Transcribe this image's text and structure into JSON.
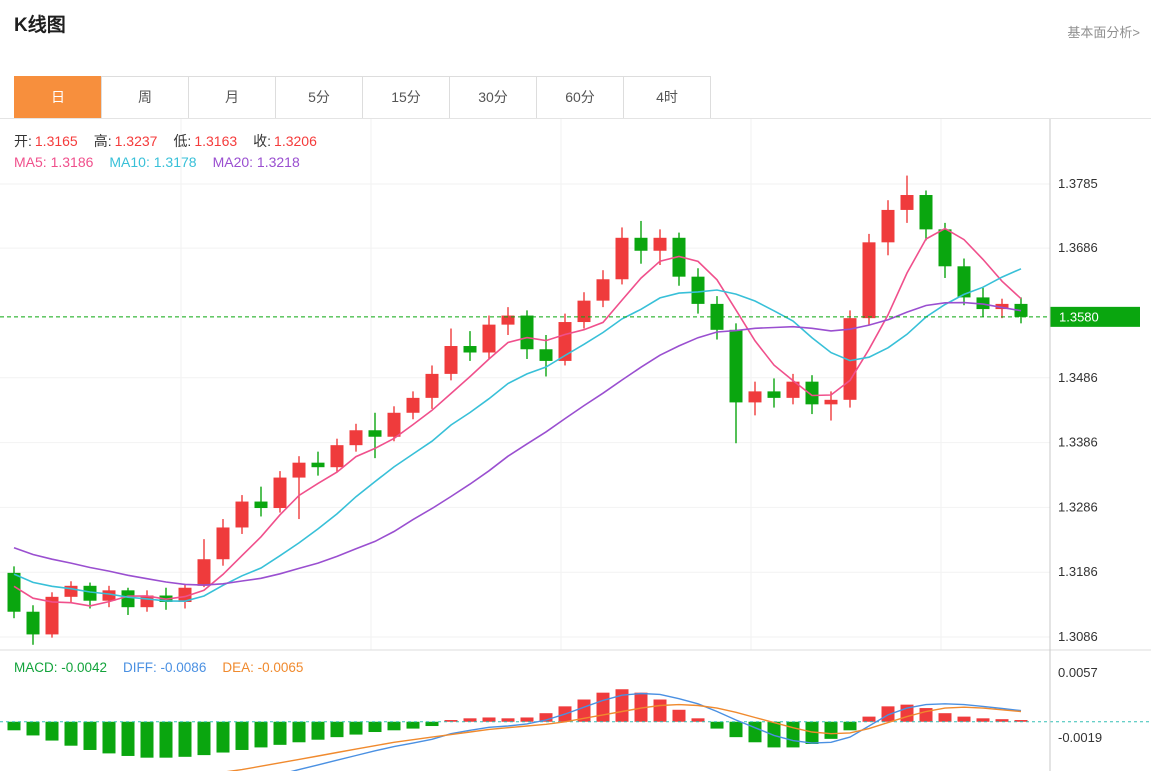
{
  "page": {
    "title": "K线图",
    "link": "基本面分析>"
  },
  "tabs": {
    "items": [
      {
        "label": "日",
        "active": true
      },
      {
        "label": "周",
        "active": false
      },
      {
        "label": "月",
        "active": false
      },
      {
        "label": "5分",
        "active": false
      },
      {
        "label": "15分",
        "active": false
      },
      {
        "label": "30分",
        "active": false
      },
      {
        "label": "60分",
        "active": false
      },
      {
        "label": "4时",
        "active": false
      }
    ],
    "active_color": "#f78f3d"
  },
  "info": {
    "ohlc": [
      {
        "key": "open",
        "label": "开:",
        "value": "1.3165"
      },
      {
        "key": "high",
        "label": "高:",
        "value": "1.3237"
      },
      {
        "key": "low",
        "label": "低:",
        "value": "1.3163"
      },
      {
        "key": "close",
        "label": "收:",
        "value": "1.3206"
      }
    ],
    "ma": [
      {
        "key": "ma5",
        "label": "MA5:",
        "value": "1.3186",
        "color": "#f0508c"
      },
      {
        "key": "ma10",
        "label": "MA10:",
        "value": "1.3178",
        "color": "#38c0d8"
      },
      {
        "key": "ma20",
        "label": "MA20:",
        "value": "1.3218",
        "color": "#9a4fd0"
      }
    ],
    "macd": [
      {
        "key": "macd",
        "label": "MACD:",
        "value": "-0.0042",
        "color": "#12a33b"
      },
      {
        "key": "diff",
        "label": "DIFF:",
        "value": "-0.0086",
        "color": "#4a90e2"
      },
      {
        "key": "dea",
        "label": "DEA:",
        "value": "-0.0065",
        "color": "#f08a2e"
      }
    ]
  },
  "chart_data": {
    "type": "candlestick",
    "title": "K线图",
    "price_axis": {
      "ticks": [
        1.3785,
        1.3686,
        1.3486,
        1.3386,
        1.3286,
        1.3186,
        1.3086
      ],
      "current_price": 1.358
    },
    "colors": {
      "up": "#ef3b3c",
      "down": "#0aa60f",
      "diff": "#4a90e2",
      "dea": "#f08a2e",
      "zero_line": "#35bfb5"
    },
    "candles": [
      [
        1.3185,
        1.3195,
        1.3115,
        1.3125
      ],
      [
        1.3125,
        1.3135,
        1.3074,
        1.309
      ],
      [
        1.309,
        1.3155,
        1.3085,
        1.3148
      ],
      [
        1.3148,
        1.3172,
        1.314,
        1.3165
      ],
      [
        1.3165,
        1.317,
        1.313,
        1.3142
      ],
      [
        1.3142,
        1.3165,
        1.3132,
        1.3158
      ],
      [
        1.3158,
        1.3162,
        1.312,
        1.3132
      ],
      [
        1.3132,
        1.3158,
        1.3125,
        1.315
      ],
      [
        1.315,
        1.3162,
        1.3128,
        1.314
      ],
      [
        1.314,
        1.3168,
        1.313,
        1.3162
      ],
      [
        1.3165,
        1.3237,
        1.3163,
        1.3206
      ],
      [
        1.3206,
        1.3268,
        1.3196,
        1.3255
      ],
      [
        1.3255,
        1.3305,
        1.3245,
        1.3295
      ],
      [
        1.3295,
        1.3318,
        1.3272,
        1.3285
      ],
      [
        1.3285,
        1.3342,
        1.3278,
        1.3332
      ],
      [
        1.3332,
        1.3365,
        1.3268,
        1.3355
      ],
      [
        1.3355,
        1.3372,
        1.3335,
        1.3348
      ],
      [
        1.3348,
        1.3392,
        1.334,
        1.3382
      ],
      [
        1.3382,
        1.3415,
        1.3372,
        1.3405
      ],
      [
        1.3405,
        1.3432,
        1.3362,
        1.3395
      ],
      [
        1.3395,
        1.3442,
        1.3388,
        1.3432
      ],
      [
        1.3432,
        1.3465,
        1.3422,
        1.3455
      ],
      [
        1.3455,
        1.3505,
        1.3438,
        1.3492
      ],
      [
        1.3492,
        1.3562,
        1.3482,
        1.3535
      ],
      [
        1.3535,
        1.3558,
        1.3512,
        1.3525
      ],
      [
        1.3525,
        1.3582,
        1.3515,
        1.3568
      ],
      [
        1.3568,
        1.3595,
        1.3552,
        1.3582
      ],
      [
        1.3582,
        1.359,
        1.3515,
        1.353
      ],
      [
        1.353,
        1.3552,
        1.3488,
        1.3512
      ],
      [
        1.3512,
        1.3585,
        1.3505,
        1.3572
      ],
      [
        1.3572,
        1.3618,
        1.3562,
        1.3605
      ],
      [
        1.3605,
        1.3652,
        1.3595,
        1.3638
      ],
      [
        1.3638,
        1.3718,
        1.363,
        1.3702
      ],
      [
        1.3702,
        1.3728,
        1.3662,
        1.3682
      ],
      [
        1.3682,
        1.3715,
        1.366,
        1.3702
      ],
      [
        1.3702,
        1.371,
        1.3628,
        1.3642
      ],
      [
        1.3642,
        1.3655,
        1.3585,
        1.36
      ],
      [
        1.36,
        1.3612,
        1.3545,
        1.356
      ],
      [
        1.356,
        1.357,
        1.3385,
        1.3448
      ],
      [
        1.3448,
        1.348,
        1.3428,
        1.3465
      ],
      [
        1.3465,
        1.3485,
        1.344,
        1.3455
      ],
      [
        1.3455,
        1.3492,
        1.3445,
        1.348
      ],
      [
        1.348,
        1.349,
        1.343,
        1.3445
      ],
      [
        1.3445,
        1.3465,
        1.342,
        1.3452
      ],
      [
        1.3452,
        1.359,
        1.344,
        1.3578
      ],
      [
        1.3578,
        1.3708,
        1.3568,
        1.3695
      ],
      [
        1.3695,
        1.376,
        1.3675,
        1.3745
      ],
      [
        1.3745,
        1.3798,
        1.3725,
        1.3768
      ],
      [
        1.3768,
        1.3775,
        1.3698,
        1.3715
      ],
      [
        1.3715,
        1.3725,
        1.364,
        1.3658
      ],
      [
        1.3658,
        1.367,
        1.3598,
        1.361
      ],
      [
        1.361,
        1.3625,
        1.358,
        1.3592
      ],
      [
        1.3592,
        1.3608,
        1.3578,
        1.36
      ],
      [
        1.36,
        1.361,
        1.357,
        1.358
      ]
    ],
    "prehistory_closes": [
      1.33,
      1.3293,
      1.3286,
      1.3278,
      1.327,
      1.3262,
      1.3253,
      1.3244,
      1.3235,
      1.3226,
      1.3217,
      1.3209,
      1.3201,
      1.3194,
      1.3188,
      1.3182,
      1.3176,
      1.3171,
      1.3167
    ],
    "ma": [
      {
        "period": 5,
        "color": "#f0508c"
      },
      {
        "period": 10,
        "color": "#38c0d8"
      },
      {
        "period": 20,
        "color": "#9a4fd0"
      }
    ],
    "macd": {
      "ticks": [
        0.0057,
        -0.0019
      ],
      "hist": [
        -0.001,
        -0.0016,
        -0.0022,
        -0.0028,
        -0.0033,
        -0.0037,
        -0.004,
        -0.0042,
        -0.0042,
        -0.0041,
        -0.0039,
        -0.0036,
        -0.0033,
        -0.003,
        -0.0027,
        -0.0024,
        -0.0021,
        -0.0018,
        -0.0015,
        -0.0012,
        -0.001,
        -0.0008,
        -0.0005,
        0.0002,
        0.0004,
        0.0005,
        0.0004,
        0.0005,
        0.001,
        0.0018,
        0.0026,
        0.0034,
        0.0038,
        0.0034,
        0.0026,
        0.0014,
        0.0004,
        -0.0008,
        -0.0018,
        -0.0024,
        -0.003,
        -0.003,
        -0.0026,
        -0.002,
        -0.001,
        0.0006,
        0.0018,
        0.002,
        0.0016,
        0.001,
        0.0006,
        0.0004,
        0.0003,
        0.0002
      ],
      "dea": [
        -0.006,
        -0.0062,
        -0.0063,
        -0.0064,
        -0.0065,
        -0.0065,
        -0.0065,
        -0.0065,
        -0.0065,
        -0.0064,
        -0.0062,
        -0.0059,
        -0.0056,
        -0.0052,
        -0.0048,
        -0.0044,
        -0.004,
        -0.0036,
        -0.0032,
        -0.0028,
        -0.0024,
        -0.0021,
        -0.0018,
        -0.0015,
        -0.0012,
        -0.0009,
        -0.0007,
        -0.0005,
        -0.0003,
        0.0,
        0.0004,
        0.0008,
        0.0012,
        0.0016,
        0.0019,
        0.002,
        0.0019,
        0.0016,
        0.0011,
        0.0005,
        -0.0001,
        -0.0007,
        -0.0012,
        -0.0014,
        -0.0013,
        -0.0008,
        -0.0001,
        0.0006,
        0.0012,
        0.0016,
        0.0017,
        0.0016,
        0.0014,
        0.0012
      ]
    }
  }
}
